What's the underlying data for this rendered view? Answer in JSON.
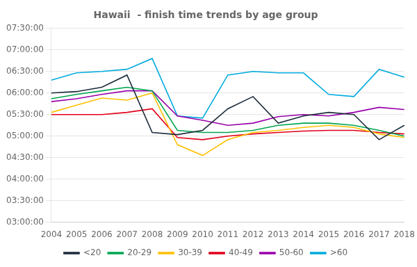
{
  "chart_data": {
    "type": "line",
    "title": "Hawaii  - finish time trends by age group",
    "categories": [
      "2004",
      "2005",
      "2006",
      "2007",
      "2008",
      "2009",
      "2010",
      "2011",
      "2012",
      "2013",
      "2014",
      "2015",
      "2016",
      "2017",
      "2018"
    ],
    "series": [
      {
        "name": "<20",
        "color": "#1c2b3a",
        "values": [
          360,
          362,
          368,
          385,
          305,
          302,
          308,
          338,
          355,
          318,
          328,
          333,
          330,
          295,
          315
        ]
      },
      {
        "name": "20-29",
        "color": "#00a550",
        "values": [
          352,
          358,
          363,
          368,
          363,
          308,
          305,
          305,
          308,
          315,
          318,
          318,
          315,
          308,
          300
        ]
      },
      {
        "name": "30-39",
        "color": "#ffc000",
        "values": [
          333,
          343,
          353,
          350,
          360,
          288,
          273,
          295,
          305,
          308,
          312,
          315,
          312,
          303,
          298
        ]
      },
      {
        "name": "40-49",
        "color": "#e2001a",
        "values": [
          330,
          330,
          330,
          333,
          338,
          298,
          295,
          300,
          303,
          305,
          307,
          308,
          308,
          305,
          303
        ]
      },
      {
        "name": "50-60",
        "color": "#9900aa",
        "values": [
          348,
          352,
          358,
          363,
          363,
          328,
          322,
          315,
          318,
          327,
          330,
          328,
          333,
          340,
          337
        ]
      },
      {
        "name": ">60",
        "color": "#00aadd",
        "values": [
          378,
          388,
          390,
          393,
          408,
          328,
          325,
          385,
          390,
          388,
          388,
          358,
          355,
          393,
          382
        ]
      }
    ],
    "ylim": [
      180,
      450
    ],
    "yticks": [
      {
        "value": 180,
        "label": "03:00:00"
      },
      {
        "value": 210,
        "label": "03:30:00"
      },
      {
        "value": 240,
        "label": "04:00:00"
      },
      {
        "value": 270,
        "label": "04:30:00"
      },
      {
        "value": 300,
        "label": "05:00:00"
      },
      {
        "value": 330,
        "label": "05:30:00"
      },
      {
        "value": 360,
        "label": "06:00:00"
      },
      {
        "value": 390,
        "label": "06:30:00"
      },
      {
        "value": 420,
        "label": "07:00:00"
      },
      {
        "value": 450,
        "label": "07:30:00"
      }
    ],
    "grid": true,
    "legend": "bottom"
  }
}
